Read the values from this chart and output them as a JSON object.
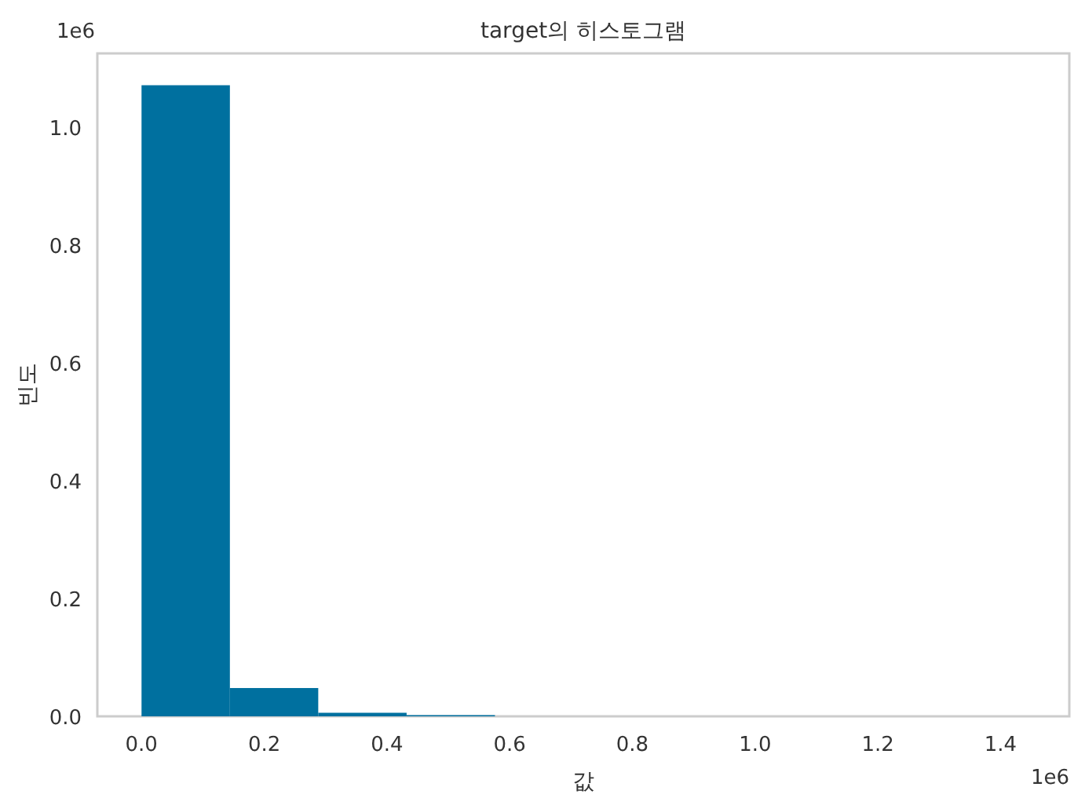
{
  "chart_data": {
    "type": "histogram",
    "title": "target의 히스토그램",
    "xlabel": "값",
    "ylabel": "빈도",
    "bins": [
      0,
      0.144,
      0.288,
      0.432,
      0.576,
      0.72,
      0.864,
      1.008,
      1.152,
      1.296,
      1.44
    ],
    "values": [
      1.071,
      0.048,
      0.006,
      0.002,
      0,
      0,
      0,
      0,
      0,
      0
    ],
    "color": "#00709f",
    "xlim": [
      -0.072,
      1.512
    ],
    "ylim": [
      0,
      1.125
    ],
    "xticks": [
      {
        "value": 0,
        "label": "0.0"
      },
      0.2,
      0.4,
      0.6,
      0.8,
      {
        "value": 1,
        "label": "1.0"
      },
      1.2,
      1.4
    ],
    "yticks": [
      {
        "value": 0,
        "label": "0.0"
      },
      0.2,
      0.4,
      0.6,
      0.8,
      {
        "value": 1,
        "label": "1.0"
      }
    ],
    "annotations": [
      "1e6",
      "1e6"
    ],
    "grid": false
  }
}
